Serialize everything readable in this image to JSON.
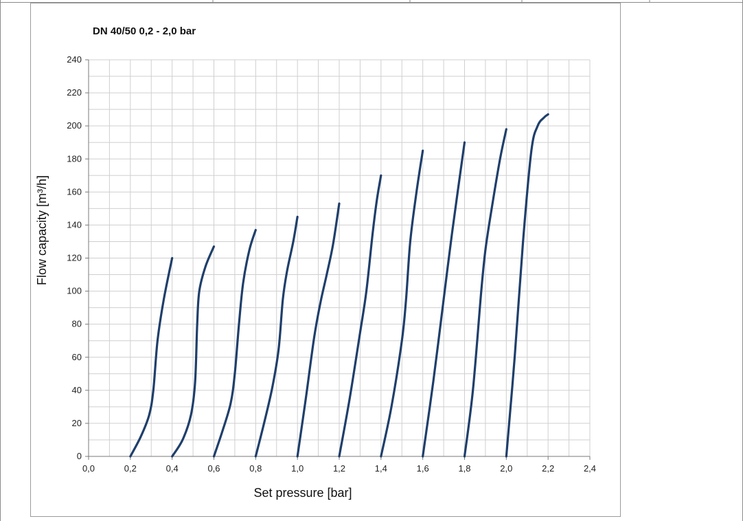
{
  "chart_data": {
    "type": "line",
    "title": "DN 40/50  0,2 - 2,0 bar",
    "xlabel": "Set pressure   [bar]",
    "ylabel": "Flow capacity   [m³/h]",
    "xlim": [
      0,
      2.4
    ],
    "ylim": [
      0,
      240
    ],
    "x_ticks": [
      "0,0",
      "0,2",
      "0,4",
      "0,6",
      "0,8",
      "1,0",
      "1,2",
      "1,4",
      "1,6",
      "1,8",
      "2,0",
      "2,2",
      "2,4"
    ],
    "y_ticks": [
      "0",
      "20",
      "40",
      "60",
      "80",
      "100",
      "120",
      "140",
      "160",
      "180",
      "200",
      "220",
      "240"
    ],
    "grid": true,
    "legend": "none",
    "line_color": "#1f3f6b",
    "series": [
      {
        "points": [
          [
            0.2,
            0
          ],
          [
            0.25,
            12
          ],
          [
            0.29,
            25
          ],
          [
            0.31,
            40
          ],
          [
            0.33,
            70
          ],
          [
            0.36,
            95
          ],
          [
            0.4,
            120
          ]
        ]
      },
      {
        "points": [
          [
            0.4,
            0
          ],
          [
            0.45,
            10
          ],
          [
            0.49,
            25
          ],
          [
            0.51,
            45
          ],
          [
            0.52,
            80
          ],
          [
            0.53,
            100
          ],
          [
            0.56,
            115
          ],
          [
            0.6,
            127
          ]
        ]
      },
      {
        "points": [
          [
            0.6,
            0
          ],
          [
            0.64,
            15
          ],
          [
            0.68,
            32
          ],
          [
            0.7,
            50
          ],
          [
            0.72,
            80
          ],
          [
            0.74,
            105
          ],
          [
            0.77,
            125
          ],
          [
            0.8,
            137
          ]
        ]
      },
      {
        "points": [
          [
            0.8,
            0
          ],
          [
            0.84,
            20
          ],
          [
            0.88,
            42
          ],
          [
            0.91,
            65
          ],
          [
            0.93,
            95
          ],
          [
            0.95,
            112
          ],
          [
            0.98,
            130
          ],
          [
            1.0,
            145
          ]
        ]
      },
      {
        "points": [
          [
            1.0,
            0
          ],
          [
            1.04,
            35
          ],
          [
            1.08,
            72
          ],
          [
            1.11,
            93
          ],
          [
            1.14,
            110
          ],
          [
            1.17,
            128
          ],
          [
            1.2,
            153
          ]
        ]
      },
      {
        "points": [
          [
            1.2,
            0
          ],
          [
            1.25,
            35
          ],
          [
            1.3,
            75
          ],
          [
            1.33,
            100
          ],
          [
            1.36,
            135
          ],
          [
            1.38,
            155
          ],
          [
            1.4,
            170
          ]
        ]
      },
      {
        "points": [
          [
            1.4,
            0
          ],
          [
            1.45,
            30
          ],
          [
            1.5,
            70
          ],
          [
            1.52,
            95
          ],
          [
            1.54,
            130
          ],
          [
            1.57,
            160
          ],
          [
            1.6,
            185
          ]
        ]
      },
      {
        "points": [
          [
            1.6,
            0
          ],
          [
            1.65,
            45
          ],
          [
            1.7,
            95
          ],
          [
            1.74,
            135
          ],
          [
            1.8,
            190
          ]
        ]
      },
      {
        "points": [
          [
            1.8,
            0
          ],
          [
            1.84,
            40
          ],
          [
            1.88,
            100
          ],
          [
            1.9,
            125
          ],
          [
            1.93,
            150
          ],
          [
            1.97,
            180
          ],
          [
            2.0,
            198
          ]
        ]
      },
      {
        "points": [
          [
            2.0,
            0
          ],
          [
            2.04,
            60
          ],
          [
            2.08,
            130
          ],
          [
            2.12,
            185
          ],
          [
            2.15,
            200
          ],
          [
            2.18,
            205
          ],
          [
            2.2,
            207
          ]
        ]
      }
    ]
  }
}
